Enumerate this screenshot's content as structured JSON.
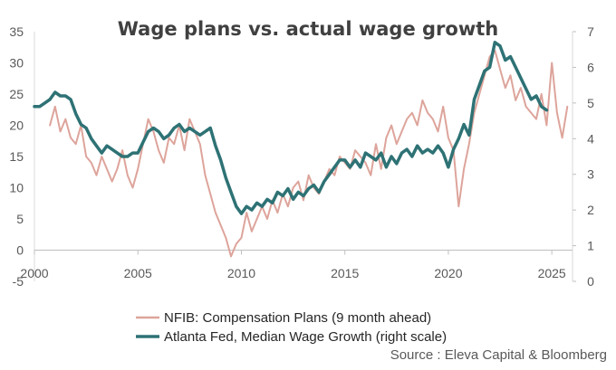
{
  "chart_data": {
    "type": "line",
    "title": "Wage plans vs. actual wage growth",
    "source": "Source : Eleva Capital & Bloomberg",
    "x_ticks": [
      "2000",
      "2005",
      "2010",
      "2015",
      "2020",
      "2025"
    ],
    "x_tick_values": [
      2000,
      2005,
      2010,
      2015,
      2020,
      2025
    ],
    "xlim": [
      2000,
      2026
    ],
    "left_axis": {
      "ylim": [
        -5,
        35
      ],
      "ticks": [
        "35",
        "30",
        "25",
        "20",
        "15",
        "10",
        "5",
        "0",
        "-5"
      ],
      "tick_values": [
        35,
        30,
        25,
        20,
        15,
        10,
        5,
        0,
        -5
      ]
    },
    "right_axis": {
      "ylim": [
        0,
        7
      ],
      "ticks": [
        "7",
        "6",
        "5",
        "4",
        "3",
        "2",
        "1",
        "0"
      ],
      "tick_values": [
        7,
        6,
        5,
        4,
        3,
        2,
        1,
        0
      ]
    },
    "series": [
      {
        "name": "NFIB: Compensation Plans (9 month ahead)",
        "axis": "left",
        "color": "#dda49b",
        "x": [
          2000.75,
          2001.0,
          2001.25,
          2001.5,
          2001.75,
          2002.0,
          2002.25,
          2002.5,
          2002.75,
          2003.0,
          2003.25,
          2003.5,
          2003.75,
          2004.0,
          2004.25,
          2004.5,
          2004.75,
          2005.0,
          2005.25,
          2005.5,
          2005.75,
          2006.0,
          2006.25,
          2006.5,
          2006.75,
          2007.0,
          2007.25,
          2007.5,
          2007.75,
          2008.0,
          2008.25,
          2008.5,
          2008.75,
          2009.0,
          2009.25,
          2009.5,
          2009.75,
          2010.0,
          2010.25,
          2010.5,
          2010.75,
          2011.0,
          2011.25,
          2011.5,
          2011.75,
          2012.0,
          2012.25,
          2012.5,
          2012.75,
          2013.0,
          2013.25,
          2013.5,
          2013.75,
          2014.0,
          2014.25,
          2014.5,
          2014.75,
          2015.0,
          2015.25,
          2015.5,
          2015.75,
          2016.0,
          2016.25,
          2016.5,
          2016.75,
          2017.0,
          2017.25,
          2017.5,
          2017.75,
          2018.0,
          2018.25,
          2018.5,
          2018.75,
          2019.0,
          2019.25,
          2019.5,
          2019.75,
          2020.0,
          2020.25,
          2020.5,
          2020.75,
          2021.0,
          2021.25,
          2021.5,
          2021.75,
          2022.0,
          2022.25,
          2022.5,
          2022.75,
          2023.0,
          2023.25,
          2023.5,
          2023.75,
          2024.0,
          2024.25,
          2024.5,
          2024.75,
          2025.0,
          2025.25,
          2025.5,
          2025.75
        ],
        "values": [
          20,
          23,
          19,
          21,
          18,
          17,
          20,
          15,
          14,
          12,
          15,
          13,
          11,
          13,
          16,
          12,
          10,
          13,
          17,
          21,
          19,
          16,
          14,
          18,
          17,
          20,
          16,
          21,
          19,
          17,
          12,
          9,
          6,
          4,
          2,
          -1,
          1,
          2,
          6,
          3,
          5,
          7,
          5,
          8,
          6,
          9,
          7,
          10,
          11,
          8,
          12,
          10,
          9,
          11,
          13,
          12,
          15,
          14,
          13,
          16,
          15,
          14,
          12,
          17,
          13,
          18,
          20,
          17,
          19,
          21,
          22,
          20,
          24,
          22,
          21,
          19,
          23,
          18,
          16,
          7,
          13,
          17,
          22,
          25,
          28,
          31,
          32,
          29,
          26,
          28,
          24,
          26,
          23,
          22,
          21,
          25,
          20,
          30,
          22,
          18,
          23
        ]
      },
      {
        "name": "Atlanta Fed, Median Wage Growth  (right scale)",
        "axis": "right",
        "color": "#2e7275",
        "x": [
          2000.0,
          2000.25,
          2000.5,
          2000.75,
          2001.0,
          2001.25,
          2001.5,
          2001.75,
          2002.0,
          2002.25,
          2002.5,
          2002.75,
          2003.0,
          2003.25,
          2003.5,
          2003.75,
          2004.0,
          2004.25,
          2004.5,
          2004.75,
          2005.0,
          2005.25,
          2005.5,
          2005.75,
          2006.0,
          2006.25,
          2006.5,
          2006.75,
          2007.0,
          2007.25,
          2007.5,
          2007.75,
          2008.0,
          2008.25,
          2008.5,
          2008.75,
          2009.0,
          2009.25,
          2009.5,
          2009.75,
          2010.0,
          2010.25,
          2010.5,
          2010.75,
          2011.0,
          2011.25,
          2011.5,
          2011.75,
          2012.0,
          2012.25,
          2012.5,
          2012.75,
          2013.0,
          2013.25,
          2013.5,
          2013.75,
          2014.0,
          2014.25,
          2014.5,
          2014.75,
          2015.0,
          2015.25,
          2015.5,
          2015.75,
          2016.0,
          2016.25,
          2016.5,
          2016.75,
          2017.0,
          2017.25,
          2017.5,
          2017.75,
          2018.0,
          2018.25,
          2018.5,
          2018.75,
          2019.0,
          2019.25,
          2019.5,
          2019.75,
          2020.0,
          2020.25,
          2020.5,
          2020.75,
          2021.0,
          2021.25,
          2021.5,
          2021.75,
          2022.0,
          2022.25,
          2022.5,
          2022.75,
          2023.0,
          2023.25,
          2023.5,
          2023.75,
          2024.0,
          2024.25,
          2024.5,
          2024.75
        ],
        "values": [
          4.9,
          4.9,
          5.0,
          5.1,
          5.3,
          5.2,
          5.2,
          5.1,
          4.7,
          4.4,
          4.3,
          4.0,
          3.8,
          3.6,
          3.8,
          3.7,
          3.6,
          3.5,
          3.5,
          3.6,
          3.6,
          3.9,
          4.2,
          4.3,
          4.2,
          4.0,
          4.1,
          4.3,
          4.4,
          4.2,
          4.3,
          4.2,
          4.1,
          4.2,
          4.3,
          3.8,
          3.4,
          2.9,
          2.5,
          2.1,
          1.9,
          2.1,
          2.0,
          2.2,
          2.1,
          2.3,
          2.2,
          2.5,
          2.4,
          2.6,
          2.3,
          2.5,
          2.4,
          2.6,
          2.7,
          2.5,
          2.8,
          3.0,
          3.2,
          3.4,
          3.4,
          3.2,
          3.4,
          3.2,
          3.6,
          3.5,
          3.4,
          3.6,
          3.2,
          3.5,
          3.3,
          3.6,
          3.7,
          3.5,
          3.8,
          3.6,
          3.7,
          3.6,
          3.8,
          3.6,
          3.2,
          3.7,
          4.0,
          4.4,
          4.1,
          5.1,
          5.5,
          5.9,
          6.0,
          6.7,
          6.6,
          6.2,
          6.3,
          6.0,
          5.7,
          5.4,
          5.1,
          5.2,
          4.9,
          4.8
        ]
      }
    ]
  }
}
